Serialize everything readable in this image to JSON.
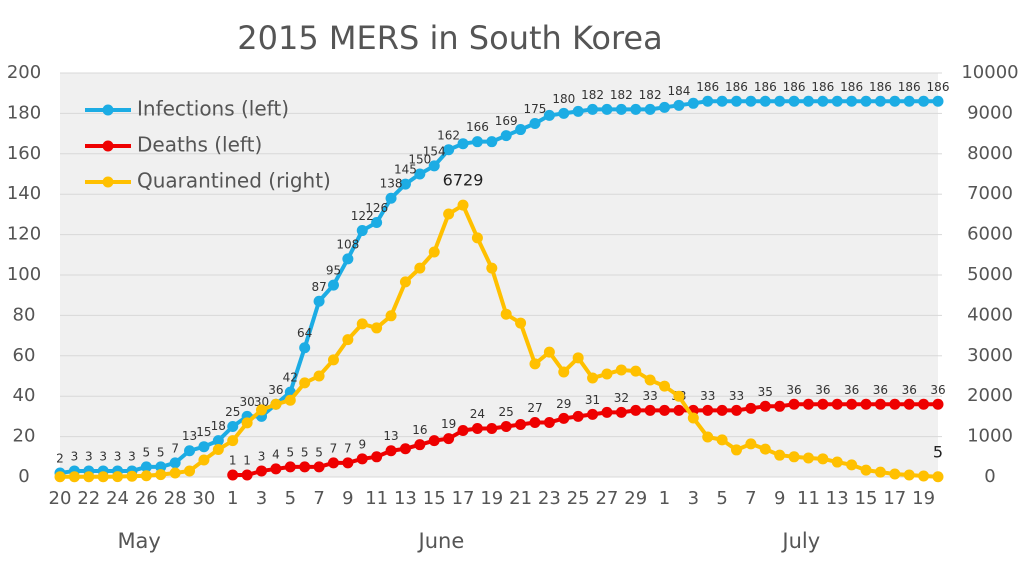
{
  "chart_data": {
    "type": "line",
    "title": "2015 MERS in South Korea",
    "categories": [
      "20",
      null,
      "22",
      null,
      "24",
      null,
      "26",
      null,
      "28",
      null,
      "30",
      null,
      "1",
      null,
      "3",
      null,
      "5",
      null,
      "7",
      null,
      "9",
      null,
      "11",
      null,
      "13",
      null,
      "15",
      null,
      "17",
      null,
      "19",
      null,
      "21",
      null,
      "23",
      null,
      "25",
      null,
      "27",
      null,
      "29",
      null,
      "1",
      null,
      "3",
      null,
      "5",
      null,
      "7",
      null,
      "9",
      null,
      "11",
      null,
      "13",
      null,
      "15",
      null,
      "17",
      null,
      "19",
      null
    ],
    "x_group_labels": [
      "May",
      "June",
      "July"
    ],
    "ylim": [
      0,
      200
    ],
    "yticks": [
      0,
      20,
      40,
      60,
      80,
      100,
      120,
      140,
      160,
      180,
      200
    ],
    "y2lim": [
      0,
      10000
    ],
    "y2ticks": [
      0,
      1000,
      2000,
      3000,
      4000,
      5000,
      6000,
      7000,
      8000,
      9000,
      10000
    ],
    "grid": true,
    "legend": "upper-left",
    "series": [
      {
        "name": "Infections (left)",
        "color": "#1cace4",
        "axis": "y",
        "values": [
          2,
          3,
          3,
          3,
          3,
          3,
          5,
          5,
          7,
          13,
          15,
          18,
          25,
          30,
          30,
          36,
          42,
          64,
          87,
          95,
          108,
          122,
          126,
          138,
          145,
          150,
          154,
          162,
          165,
          166,
          166,
          169,
          172,
          175,
          179,
          180,
          181,
          182,
          182,
          182,
          182,
          182,
          183,
          184,
          185,
          186,
          186,
          186,
          186,
          186,
          186,
          186,
          186,
          186,
          186,
          186,
          186,
          186,
          186,
          186,
          186,
          186
        ],
        "value_labels": [
          "2",
          "3",
          "3",
          "3",
          "3",
          "3",
          "5",
          "5",
          "7",
          "13",
          "15",
          "18",
          "25",
          "30",
          "30",
          "36",
          "42",
          "64",
          "87",
          "95",
          "108",
          "122",
          "126",
          "138",
          "145",
          "150",
          "154",
          "162",
          null,
          "166",
          null,
          "169",
          null,
          "175",
          null,
          "180",
          null,
          "182",
          null,
          "182",
          null,
          "182",
          null,
          "184",
          null,
          "186",
          null,
          "186",
          null,
          "186",
          null,
          "186",
          null,
          "186",
          null,
          "186",
          null,
          "186",
          null,
          "186",
          null,
          "186"
        ]
      },
      {
        "name": "Deaths (left)",
        "color": "#ee0000",
        "axis": "y",
        "values": [
          null,
          null,
          null,
          null,
          null,
          null,
          null,
          null,
          null,
          null,
          null,
          null,
          1,
          1,
          3,
          4,
          5,
          5,
          5,
          7,
          7,
          9,
          10,
          13,
          14,
          16,
          18,
          19,
          23,
          24,
          24,
          25,
          26,
          27,
          27,
          29,
          30,
          31,
          32,
          32,
          33,
          33,
          33,
          33,
          33,
          33,
          33,
          33,
          34,
          35,
          35,
          36,
          36,
          36,
          36,
          36,
          36,
          36,
          36,
          36,
          36,
          36
        ],
        "value_labels": [
          null,
          null,
          null,
          null,
          null,
          null,
          null,
          null,
          null,
          null,
          null,
          null,
          "1",
          "1",
          "3",
          "4",
          "5",
          "5",
          "5",
          "7",
          "7",
          "9",
          null,
          "13",
          null,
          "16",
          null,
          "19",
          null,
          "24",
          null,
          "25",
          null,
          "27",
          null,
          "29",
          null,
          "31",
          null,
          "32",
          null,
          "33",
          null,
          "33",
          null,
          "33",
          null,
          "33",
          null,
          "35",
          null,
          "36",
          null,
          "36",
          null,
          "36",
          null,
          "36",
          null,
          "36",
          null,
          "36"
        ]
      },
      {
        "name": "Quarantined (right)",
        "color": "#ffc000",
        "axis": "y2",
        "values": [
          5,
          5,
          5,
          5,
          10,
          20,
          30,
          60,
          100,
          150,
          420,
          680,
          900,
          1340,
          1660,
          1800,
          1900,
          2330,
          2500,
          2900,
          3400,
          3790,
          3690,
          3990,
          4830,
          5170,
          5570,
          6510,
          6729,
          5920,
          5170,
          4030,
          3810,
          2800,
          3090,
          2600,
          2950,
          2450,
          2550,
          2650,
          2620,
          2400,
          2250,
          2000,
          1460,
          990,
          920,
          670,
          820,
          690,
          540,
          500,
          470,
          450,
          370,
          300,
          170,
          120,
          75,
          50,
          25,
          5
        ],
        "value_labels": [
          null,
          null,
          null,
          null,
          null,
          null,
          null,
          null,
          null,
          null,
          null,
          null,
          null,
          null,
          null,
          null,
          null,
          null,
          null,
          null,
          null,
          null,
          null,
          null,
          null,
          null,
          null,
          null,
          "6729",
          null,
          null,
          null,
          null,
          null,
          null,
          null,
          null,
          null,
          null,
          null,
          null,
          null,
          null,
          null,
          null,
          null,
          null,
          null,
          null,
          null,
          null,
          null,
          null,
          null,
          null,
          null,
          null,
          null,
          null,
          null,
          null,
          "5"
        ]
      }
    ]
  }
}
